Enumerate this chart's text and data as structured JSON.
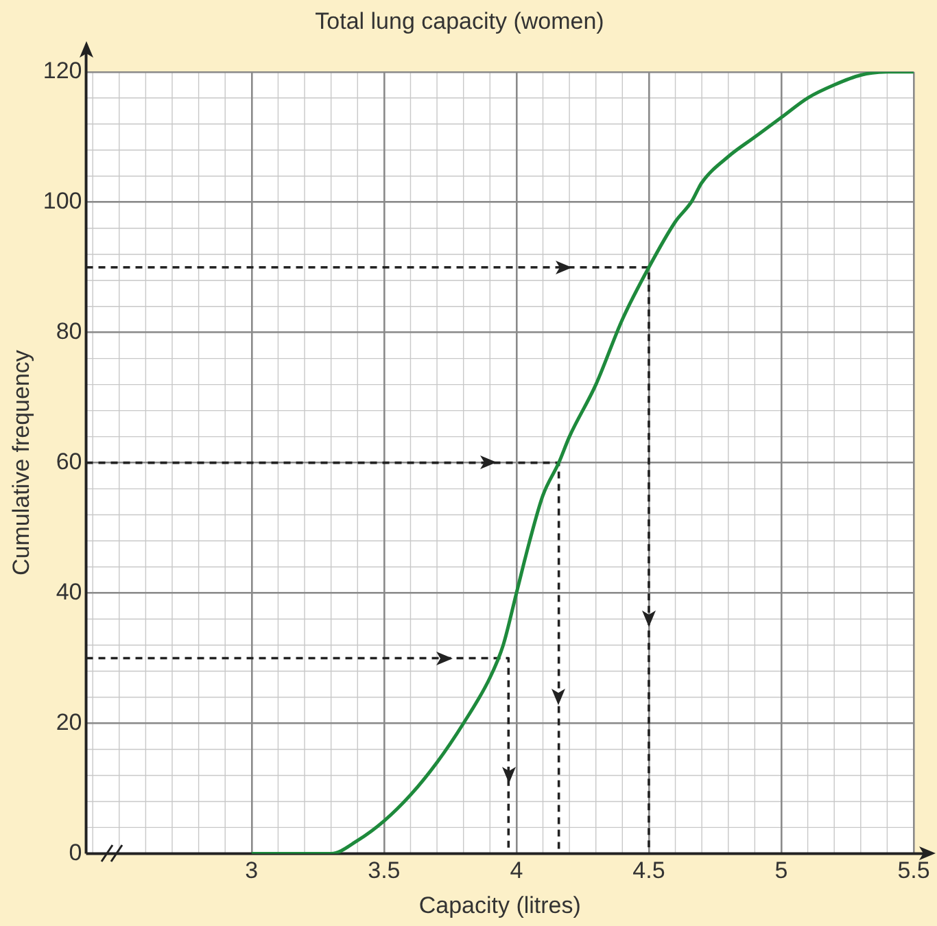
{
  "chart_data": {
    "type": "line",
    "title": "Total lung capacity (women)",
    "xlabel": "Capacity (litres)",
    "ylabel": "Cumulative frequency",
    "series": [
      {
        "color": "#1e8a3c",
        "x": [
          3,
          3.3,
          3.4,
          3.5,
          3.6,
          3.7,
          3.8,
          3.9,
          3.95,
          4,
          4.05,
          4.1,
          4.16,
          4.2,
          4.3,
          4.4,
          4.5,
          4.6,
          4.66,
          4.7,
          4.8,
          4.9,
          5,
          5.1,
          5.2,
          5.3,
          5.4,
          5.5
        ],
        "values": [
          0,
          0,
          2,
          5,
          9,
          14,
          20,
          27,
          32,
          40,
          48,
          55,
          60,
          64,
          72,
          82,
          90,
          97,
          100,
          103,
          107,
          110,
          113,
          116,
          118,
          119.5,
          120,
          120
        ]
      },
      {
        "color": "#222222",
        "line_style": "dashed",
        "x": [
          2.375,
          3.97,
          3.97
        ],
        "values": [
          30,
          30,
          0
        ]
      },
      {
        "color": "#222222",
        "line_style": "dashed",
        "x": [
          2.375,
          4.16,
          4.16
        ],
        "values": [
          60,
          60,
          0
        ]
      },
      {
        "color": "#222222",
        "line_style": "dashed",
        "x": [
          2.375,
          4.5,
          4.5
        ],
        "values": [
          90,
          90,
          0
        ]
      }
    ],
    "xlim": [
      2.375,
      5.5
    ],
    "xticks": [
      3,
      3.5,
      4,
      4.5,
      5,
      5.5
    ],
    "ylim": [
      0,
      120
    ],
    "yticks": [
      0,
      20,
      40,
      60,
      80,
      100,
      120
    ],
    "grid": true,
    "legend": false,
    "marker": "none",
    "line_style": "solid"
  }
}
